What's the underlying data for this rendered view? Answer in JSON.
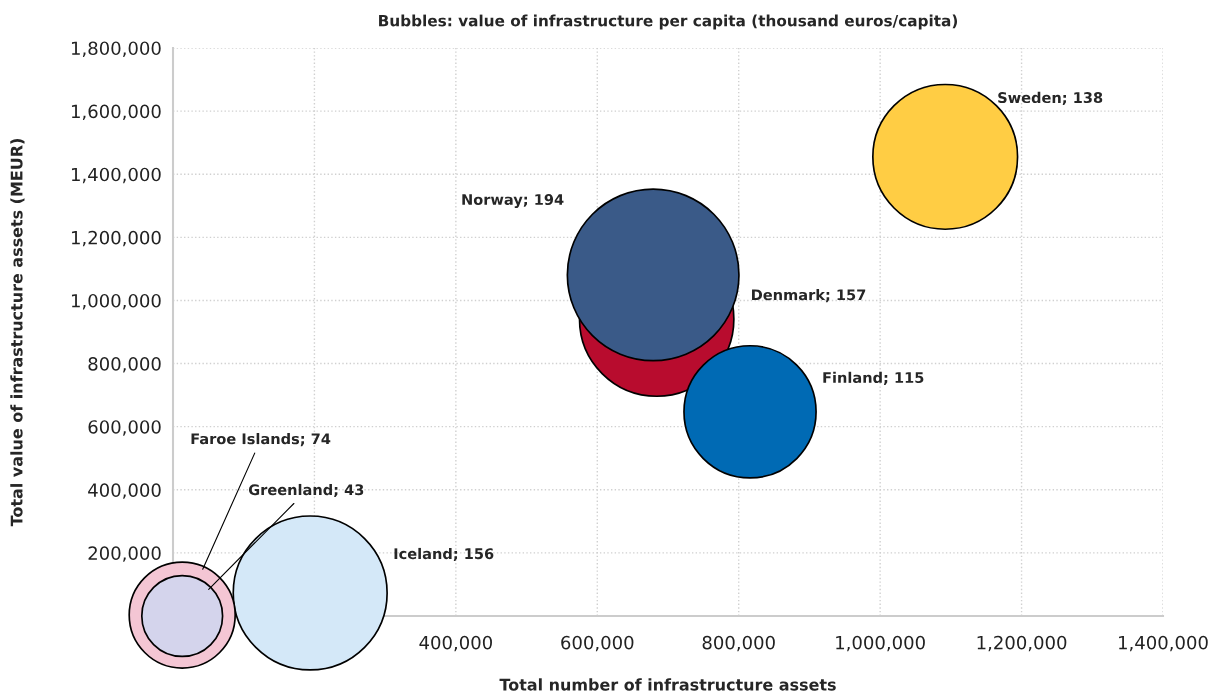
{
  "chart_data": {
    "type": "bubble",
    "title": "Bubbles: value of infrastructure per capita (thousand euros/capita)",
    "xlabel": "Total number of infrastructure assets",
    "ylabel": "Total value of infrastructure assets (MEUR)",
    "x": [
      1092000,
      684000,
      679000,
      816000,
      194000,
      13000,
      13000
    ],
    "values": [
      1455000,
      941000,
      1081000,
      647000,
      73000,
      3000,
      0
    ],
    "sizes": [
      138,
      157,
      194,
      115,
      156,
      74,
      43
    ],
    "colors": [
      "#ffcd44",
      "#b80c2e",
      "#3a5a88",
      "#006ab4",
      "#d4e8f8",
      "#f4c6d4",
      "#d4d4ec"
    ],
    "value_labels": [
      "Sweden; 138",
      "Denmark; 157",
      "Norway; 194",
      "Finland; 115",
      "Iceland; 156",
      "Faroe Islands; 74",
      "Greenland; 43"
    ],
    "xlim": [
      0,
      1400000
    ],
    "ylim": [
      0,
      1800000
    ],
    "xticks": [
      {
        "value": 0,
        "label": null
      },
      {
        "value": 200000,
        "label": null
      },
      {
        "value": 400000,
        "label": "400,000"
      },
      {
        "value": 600000,
        "label": "600,000"
      },
      {
        "value": 800000,
        "label": "800,000"
      },
      {
        "value": 1000000,
        "label": "1,000,000"
      },
      {
        "value": 1200000,
        "label": "1,200,000"
      },
      {
        "value": 1400000,
        "label": "1,400,000"
      }
    ],
    "yticks": [
      {
        "value": 0,
        "label": null
      },
      {
        "value": 200000,
        "label": "200,000"
      },
      {
        "value": 400000,
        "label": "400,000"
      },
      {
        "value": 600000,
        "label": "600,000"
      },
      {
        "value": 800000,
        "label": "800,000"
      },
      {
        "value": 1000000,
        "label": "1,000,000"
      },
      {
        "value": 1200000,
        "label": "1,200,000"
      },
      {
        "value": 1400000,
        "label": "1,400,000"
      },
      {
        "value": 1600000,
        "label": "1,600,000"
      },
      {
        "value": 1800000,
        "label": "1,800,000"
      }
    ],
    "grid": true
  }
}
